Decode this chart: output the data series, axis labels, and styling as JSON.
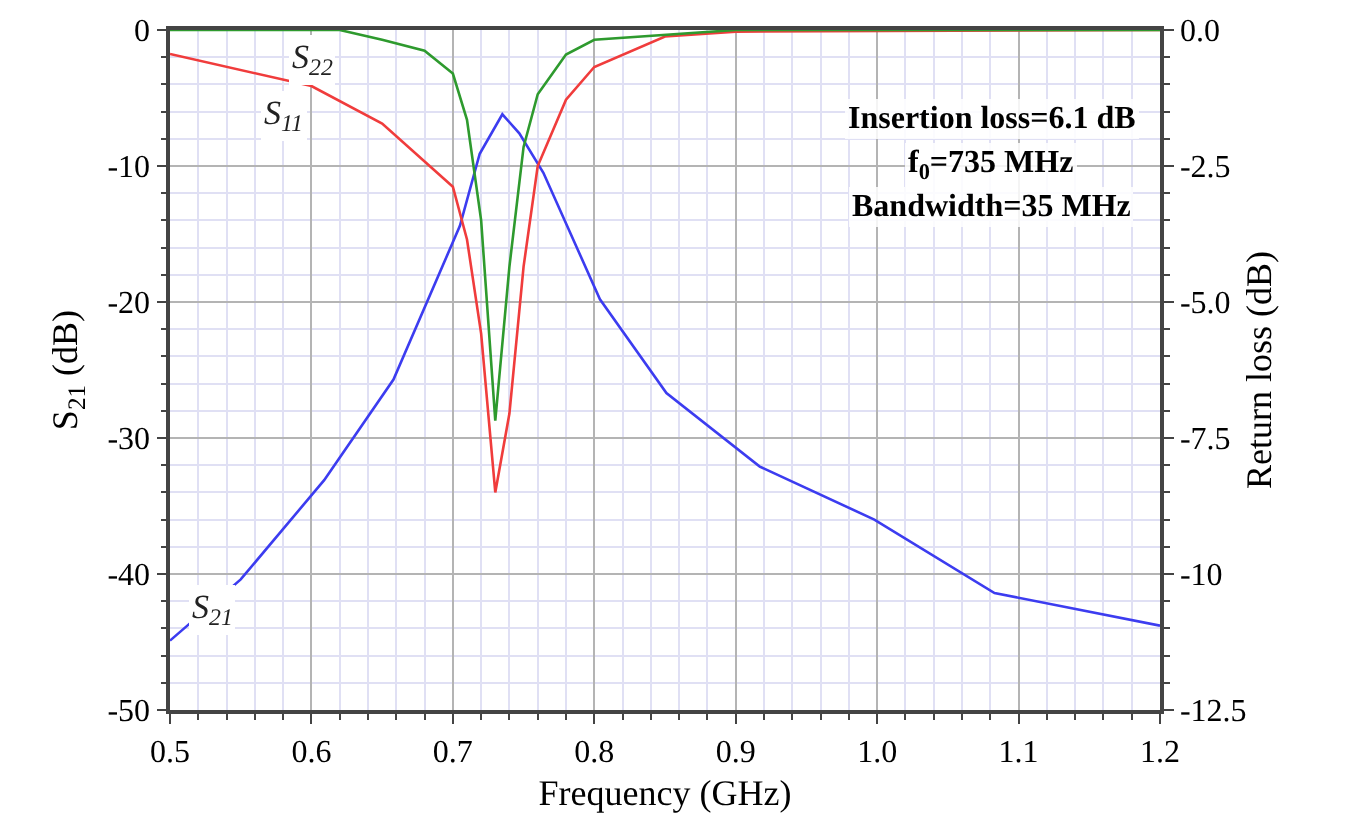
{
  "chart_data": {
    "type": "line",
    "xlabel": "Frequency (GHz)",
    "ylabel": "S$_{21}$ (dB)",
    "y2label": "Return loss (dB)",
    "xlim": [
      0.5,
      1.2
    ],
    "xticks": [
      {
        "value": 0.5,
        "label": "0.5"
      },
      {
        "value": 0.6,
        "label": "0.6"
      },
      {
        "value": 0.7,
        "label": "0.7"
      },
      {
        "value": 0.8,
        "label": "0.8"
      },
      {
        "value": 0.9,
        "label": "0.9"
      },
      {
        "value": 1.0,
        "label": "1.0"
      },
      {
        "value": 1.1,
        "label": "1.1"
      },
      {
        "value": 1.2,
        "label": "1.2"
      }
    ],
    "ylim": [
      -50,
      0
    ],
    "yticks": [
      -50,
      -40,
      -30,
      -20,
      -10,
      0
    ],
    "y2lim": [
      -12.5,
      0
    ],
    "y2ticks": [
      {
        "value": -12.5,
        "label": "-12.5"
      },
      -10,
      {
        "value": -7.5,
        "label": "-7.5"
      },
      {
        "value": -5,
        "label": "-5.0"
      },
      {
        "value": -2.5,
        "label": "-2.5"
      },
      {
        "value": 0,
        "label": "0.0"
      }
    ],
    "grid": true,
    "legend": false,
    "marker": "none",
    "line_style": "solid",
    "series": [
      {
        "name": "S$_{21}$",
        "color": "#3c3cf0",
        "x": [
          0.5,
          0.55,
          0.609,
          0.658,
          0.705,
          0.719,
          0.735,
          0.747,
          0.764,
          0.804,
          0.851,
          0.917,
          0.998,
          1.083,
          1.2
        ],
        "values": [
          -44.9,
          -40.4,
          -33.1,
          -25.7,
          -14.4,
          -9.1,
          -6.2,
          -7.6,
          -10.5,
          -19.8,
          -26.7,
          -32.1,
          -36,
          -41.4,
          -43.8
        ]
      },
      {
        "name": "S$_{11}$",
        "color": "#f03c3c",
        "axis": "y2",
        "x": [
          0.5,
          0.6,
          0.65,
          0.7,
          0.71,
          0.72,
          0.73,
          0.74,
          0.75,
          0.76,
          0.78,
          0.8,
          0.85,
          0.9,
          1.2
        ],
        "values": [
          -0.44,
          -1.03,
          -1.72,
          -2.88,
          -3.85,
          -5.58,
          -8.5,
          -7.05,
          -4.35,
          -2.5,
          -1.28,
          -0.68,
          -0.12,
          -0.03,
          0
        ]
      },
      {
        "name": "S$_{22}$",
        "color": "#2e9a2e",
        "axis": "y2",
        "x": [
          0.5,
          0.62,
          0.65,
          0.68,
          0.7,
          0.71,
          0.72,
          0.73,
          0.74,
          0.75,
          0.76,
          0.78,
          0.8,
          0.9,
          1.2
        ],
        "values": [
          0,
          0,
          -0.18,
          -0.38,
          -0.8,
          -1.65,
          -3.5,
          -7.18,
          -4.35,
          -2.15,
          -1.18,
          -0.45,
          -0.18,
          0,
          0
        ]
      }
    ],
    "annotations": [
      "Insertion loss=6.1 dB",
      "f$_{0}$=735 MHz",
      "Bandwidth=35 MHz"
    ]
  }
}
